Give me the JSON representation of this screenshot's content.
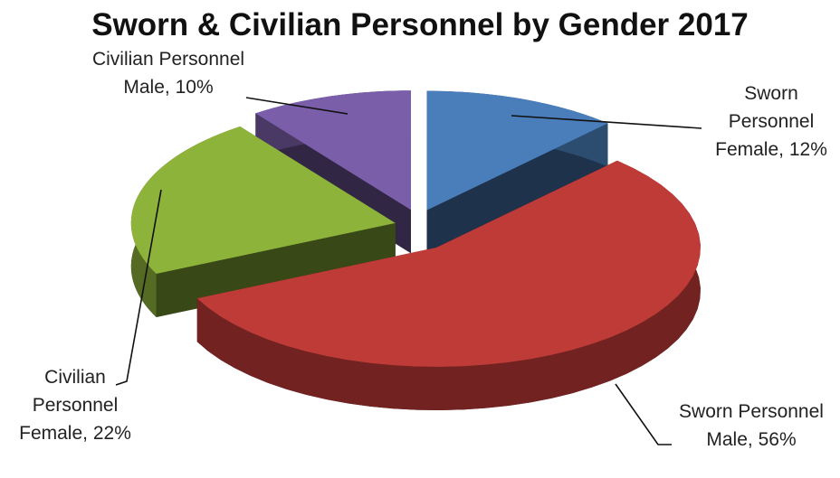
{
  "chart_data": {
    "type": "pie",
    "title": "Sworn & Civilian Personnel by Gender 2017",
    "categories": [
      "Sworn Personnel Female",
      "Sworn Personnel Male",
      "Civilian Personnel Female",
      "Civilian Personnel Male"
    ],
    "values": [
      12,
      56,
      22,
      10
    ],
    "value_labels": [
      "12%",
      "56%",
      "22%",
      "10%"
    ],
    "colors": [
      "#4a7ebb",
      "#be3b37",
      "#8db33a",
      "#7b5ea9"
    ]
  }
}
